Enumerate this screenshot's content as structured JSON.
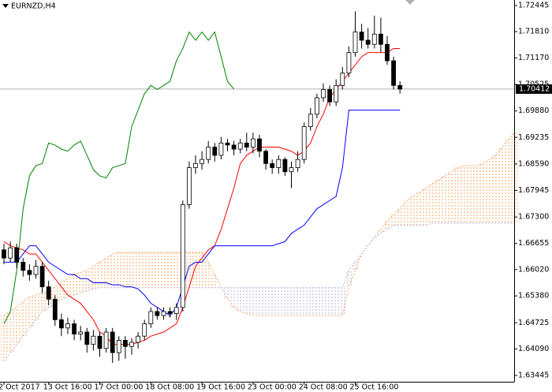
{
  "chart_data": {
    "type": "candlestick",
    "title": "EURNZD,H4",
    "categories": [
      "2 Oct 2017",
      null,
      null,
      null,
      null,
      null,
      null,
      "13 Oct 16:00",
      null,
      null,
      null,
      null,
      null,
      null,
      null,
      "17 Oct 00:00",
      null,
      null,
      null,
      null,
      null,
      null,
      null,
      "18 Oct 08:00",
      null,
      null,
      null,
      null,
      null,
      null,
      null,
      "19 Oct 16:00",
      null,
      null,
      null,
      null,
      null,
      null,
      null,
      "23 Oct 00:00",
      null,
      null,
      null,
      null,
      null,
      null,
      null,
      "24 Oct 08:00",
      null,
      null,
      null,
      null,
      null,
      null,
      null,
      "25 Oct 16:00",
      null,
      null,
      null,
      null,
      null,
      null,
      null,
      null,
      null,
      null,
      null,
      null,
      null,
      null,
      null,
      null,
      null,
      null,
      null,
      null,
      null,
      null,
      null,
      null,
      null
    ],
    "open": [
      1.665,
      1.663,
      1.6655,
      1.662,
      1.66,
      1.659,
      1.661,
      1.656,
      1.653,
      1.648,
      1.646,
      1.647,
      1.6445,
      1.645,
      1.642,
      1.644,
      1.641,
      1.645,
      1.64,
      1.643,
      1.6415,
      1.6425,
      1.644,
      1.647,
      1.65,
      1.649,
      1.65,
      1.6495,
      1.651,
      1.676,
      1.685,
      1.686,
      1.687,
      1.69,
      1.688,
      1.691,
      1.6905,
      1.6895,
      1.691,
      1.69,
      1.692,
      1.689,
      1.686,
      1.685,
      1.687,
      1.684,
      1.685,
      1.687,
      1.695,
      1.698,
      1.702,
      1.704,
      1.701,
      1.705,
      1.708,
      1.713,
      1.718,
      1.716,
      1.715,
      1.7175,
      1.715,
      1.711,
      1.705,
      null,
      null,
      null,
      null,
      null,
      null,
      null,
      null,
      null,
      null,
      null,
      null,
      null,
      null,
      null,
      null,
      null,
      null
    ],
    "high": [
      1.6665,
      1.667,
      1.6665,
      1.663,
      1.6615,
      1.6625,
      1.662,
      1.6575,
      1.654,
      1.6495,
      1.6485,
      1.648,
      1.6465,
      1.646,
      1.6455,
      1.645,
      1.646,
      1.646,
      1.644,
      1.644,
      1.6435,
      1.645,
      1.648,
      1.651,
      1.651,
      1.651,
      1.651,
      1.652,
      1.677,
      1.6865,
      1.688,
      1.689,
      1.6915,
      1.691,
      1.6925,
      1.692,
      1.6915,
      1.692,
      1.6935,
      1.6935,
      1.693,
      1.6895,
      1.687,
      1.688,
      1.6875,
      1.6865,
      1.689,
      1.696,
      1.6995,
      1.703,
      1.7055,
      1.705,
      1.7065,
      1.7095,
      1.7145,
      1.723,
      1.72,
      1.719,
      1.722,
      1.7215,
      1.717,
      1.712,
      1.706,
      null,
      null,
      null,
      null,
      null,
      null,
      null,
      null,
      null,
      null,
      null,
      null,
      null,
      null,
      null,
      null,
      null,
      null
    ],
    "low": [
      1.6615,
      1.662,
      1.6605,
      1.6585,
      1.6575,
      1.658,
      1.6545,
      1.6515,
      1.6465,
      1.644,
      1.6445,
      1.643,
      1.643,
      1.64,
      1.6405,
      1.639,
      1.64,
      1.6375,
      1.638,
      1.6385,
      1.6395,
      1.641,
      1.643,
      1.646,
      1.648,
      1.648,
      1.6485,
      1.648,
      1.65,
      1.675,
      1.6835,
      1.6845,
      1.686,
      1.6865,
      1.687,
      1.689,
      1.688,
      1.6885,
      1.689,
      1.6885,
      1.6875,
      1.6845,
      1.6835,
      1.6835,
      1.683,
      1.68,
      1.684,
      1.686,
      1.694,
      1.697,
      1.701,
      1.7,
      1.7,
      1.704,
      1.707,
      1.712,
      1.714,
      1.714,
      1.714,
      1.713,
      1.71,
      1.704,
      1.703,
      null,
      null,
      null,
      null,
      null,
      null,
      null,
      null,
      null,
      null,
      null,
      null,
      null,
      null,
      null,
      null,
      null,
      null
    ],
    "close": [
      1.663,
      1.6655,
      1.662,
      1.66,
      1.659,
      1.661,
      1.656,
      1.653,
      1.648,
      1.646,
      1.647,
      1.6445,
      1.645,
      1.642,
      1.644,
      1.641,
      1.645,
      1.64,
      1.643,
      1.6415,
      1.6425,
      1.644,
      1.647,
      1.65,
      1.649,
      1.65,
      1.6495,
      1.651,
      1.676,
      1.685,
      1.686,
      1.687,
      1.69,
      1.688,
      1.691,
      1.6905,
      1.6895,
      1.691,
      1.69,
      1.692,
      1.689,
      1.686,
      1.685,
      1.687,
      1.684,
      1.685,
      1.687,
      1.695,
      1.698,
      1.702,
      1.704,
      1.701,
      1.705,
      1.708,
      1.713,
      1.718,
      1.716,
      1.715,
      1.7175,
      1.715,
      1.711,
      1.705,
      1.70412,
      null,
      null,
      null,
      null,
      null,
      null,
      null,
      null,
      null,
      null,
      null,
      null,
      null,
      null,
      null,
      null,
      null,
      null
    ],
    "up_color": "#ffffff",
    "down_color": "#000000",
    "lines": [
      {
        "color": "#ff0000",
        "values": [
          1.667,
          1.666,
          1.6655,
          1.665,
          1.664,
          1.664,
          1.662,
          1.66,
          1.658,
          1.656,
          1.654,
          1.653,
          1.652,
          1.65,
          1.648,
          1.645,
          1.644,
          1.642,
          1.642,
          1.642,
          1.642,
          1.6425,
          1.643,
          1.644,
          1.6445,
          1.645,
          1.646,
          1.647,
          1.651,
          1.656,
          1.661,
          1.663,
          1.665,
          1.666,
          1.67,
          1.675,
          1.68,
          1.686,
          1.688,
          1.689,
          1.69,
          1.69,
          1.69,
          1.69,
          1.6895,
          1.689,
          1.688,
          1.689,
          1.691,
          1.695,
          1.698,
          1.702,
          1.704,
          1.706,
          1.708,
          1.71,
          1.712,
          1.713,
          1.713,
          1.713,
          1.713,
          1.714,
          1.714,
          null,
          null,
          null,
          null,
          null,
          null,
          null,
          null,
          null,
          null,
          null,
          null,
          null,
          null,
          null,
          null,
          null,
          null
        ]
      },
      {
        "color": "#0000ff",
        "values": [
          1.662,
          1.662,
          1.662,
          1.664,
          1.666,
          1.666,
          1.664,
          1.662,
          1.661,
          1.66,
          1.659,
          1.659,
          1.658,
          1.658,
          1.657,
          1.657,
          1.657,
          1.6565,
          1.6565,
          1.656,
          1.656,
          1.6555,
          1.654,
          1.652,
          1.651,
          1.65,
          1.649,
          1.651,
          1.656,
          1.661,
          1.662,
          1.662,
          1.664,
          1.666,
          1.666,
          1.666,
          1.666,
          1.666,
          1.666,
          1.666,
          1.666,
          1.666,
          1.666,
          1.6665,
          1.667,
          1.669,
          1.67,
          1.671,
          1.673,
          1.675,
          1.676,
          1.677,
          1.678,
          1.685,
          1.699,
          1.699,
          1.699,
          1.699,
          1.699,
          1.699,
          1.699,
          1.699,
          1.699,
          null,
          null,
          null,
          null,
          null,
          null,
          null,
          null,
          null,
          null,
          null,
          null,
          null,
          null,
          null,
          null,
          null,
          null
        ]
      },
      {
        "color": "#008000",
        "values": [
          1.647,
          1.65,
          1.66,
          1.675,
          1.683,
          1.6855,
          1.686,
          1.691,
          1.6905,
          1.6895,
          1.689,
          1.6905,
          1.6915,
          1.688,
          1.6845,
          1.683,
          1.6825,
          1.685,
          1.6855,
          1.686,
          1.695,
          1.699,
          1.703,
          1.705,
          1.704,
          1.705,
          1.706,
          1.711,
          1.714,
          1.718,
          1.716,
          1.718,
          1.716,
          1.718,
          1.712,
          1.706,
          1.70412,
          null,
          null,
          null,
          null,
          null,
          null,
          null,
          null,
          null,
          null,
          null,
          null,
          null,
          null,
          null,
          null,
          null,
          null,
          null,
          null,
          null,
          null,
          null,
          null,
          null,
          null,
          null,
          null,
          null,
          null,
          null,
          null,
          null,
          null,
          null,
          null,
          null,
          null,
          null,
          null,
          null,
          null,
          null,
          null
        ]
      }
    ],
    "cloud_a": [
      1.649,
      1.65,
      1.651,
      1.6525,
      1.6535,
      1.654,
      1.6545,
      1.655,
      1.656,
      1.657,
      1.658,
      1.659,
      1.6595,
      1.66,
      1.661,
      1.662,
      1.663,
      1.664,
      1.6644,
      1.6644,
      1.6644,
      1.6644,
      1.6644,
      1.6644,
      1.6644,
      1.6644,
      1.6644,
      1.6644,
      1.6644,
      1.6644,
      1.6644,
      1.6644,
      1.662,
      1.659,
      1.656,
      1.653,
      1.651,
      1.65,
      1.6495,
      1.649,
      1.649,
      1.649,
      1.649,
      1.649,
      1.649,
      1.649,
      1.649,
      1.649,
      1.649,
      1.649,
      1.649,
      1.649,
      1.649,
      1.649,
      1.656,
      1.66,
      1.664,
      1.666,
      1.668,
      1.67,
      1.672,
      1.6735,
      1.675,
      1.677,
      1.678,
      1.679,
      1.68,
      1.681,
      1.682,
      1.683,
      1.684,
      1.685,
      1.6855,
      1.6855,
      1.6855,
      1.686,
      1.687,
      1.688,
      1.69,
      1.692,
      1.6935
    ],
    "cloud_b": [
      1.638,
      1.64,
      1.642,
      1.644,
      1.646,
      1.648,
      1.65,
      1.651,
      1.652,
      1.653,
      1.6535,
      1.654,
      1.6545,
      1.655,
      1.6555,
      1.6558,
      1.6558,
      1.6558,
      1.6558,
      1.6558,
      1.6558,
      1.6558,
      1.6558,
      1.6558,
      1.6558,
      1.6558,
      1.6558,
      1.6558,
      1.6558,
      1.6558,
      1.6558,
      1.6558,
      1.6558,
      1.6558,
      1.6558,
      1.6558,
      1.6558,
      1.6558,
      1.6558,
      1.6558,
      1.6558,
      1.6558,
      1.6558,
      1.6558,
      1.6558,
      1.6558,
      1.6558,
      1.6558,
      1.6558,
      1.6558,
      1.6558,
      1.6558,
      1.6558,
      1.6558,
      1.66,
      1.662,
      1.664,
      1.666,
      1.668,
      1.669,
      1.67,
      1.671,
      1.671,
      1.671,
      1.671,
      1.671,
      1.671,
      1.6715,
      1.6715,
      1.6715,
      1.6715,
      1.6715,
      1.6715,
      1.6715,
      1.6715,
      1.6715,
      1.6715,
      1.6715,
      1.6715,
      1.6715,
      1.6715
    ],
    "cloud_up_color": "#f4a460",
    "cloud_down_color": "#b8b0d0",
    "current_price": 1.70412,
    "ylim": [
      1.63291,
      1.72579
    ],
    "yticks": [
      1.72445,
      {
        "value": 1.7181,
        "label": "1.71810"
      },
      {
        "value": 1.7117,
        "label": "1.71170"
      },
      1.70525,
      {
        "value": 1.6988,
        "label": "1.69880"
      },
      1.69235,
      {
        "value": 1.6859,
        "label": "1.68590"
      },
      1.67945,
      {
        "value": 1.673,
        "label": "1.67300"
      },
      1.66655,
      {
        "value": 1.6602,
        "label": "1.66020"
      },
      {
        "value": 1.6538,
        "label": "1.65380"
      },
      1.64725,
      {
        "value": 1.6409,
        "label": "1.64090"
      },
      1.63445
    ]
  }
}
